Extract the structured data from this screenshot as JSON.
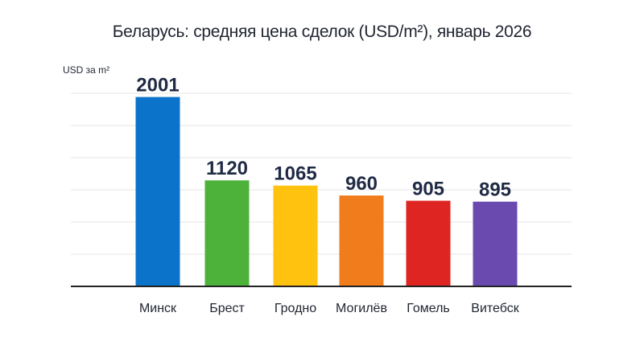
{
  "chart_data": {
    "type": "bar",
    "title": "Беларусь: средняя цена сделок (USD/m²), январь 2026",
    "ylabel": "USD за m²",
    "xlabel": "",
    "categories": [
      "Минск",
      "Брест",
      "Гродно",
      "Могилёв",
      "Гомель",
      "Витебск"
    ],
    "values": [
      2001,
      1120,
      1065,
      960,
      905,
      895
    ],
    "colors": [
      "#0b73c9",
      "#4db23a",
      "#ffc20e",
      "#f07c1c",
      "#de2522",
      "#6a4aae"
    ],
    "ylim": [
      0,
      2040
    ],
    "grid": true,
    "data_labels": true
  }
}
